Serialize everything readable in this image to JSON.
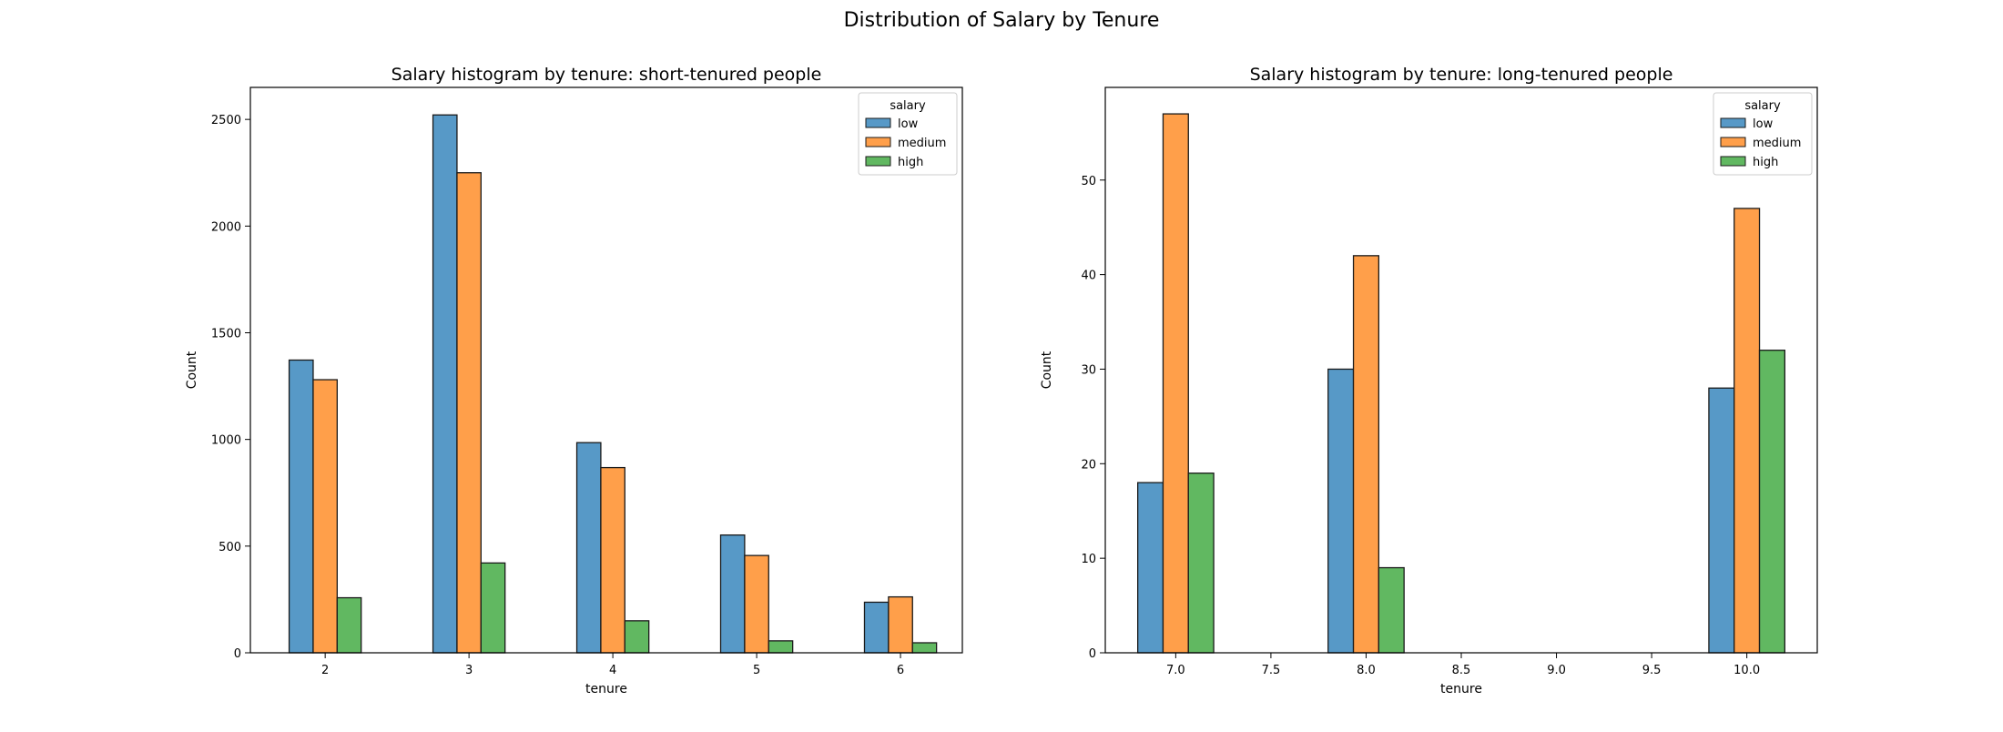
{
  "figure": {
    "suptitle": "Distribution of Salary by Tenure"
  },
  "colors": {
    "low": "#5799c7",
    "medium": "#ff9f4a",
    "high": "#61b861",
    "edge": "#1a1a1a"
  },
  "chart_data": [
    {
      "type": "bar",
      "title": "Salary histogram by tenure: short-tenured people",
      "xlabel": "tenure",
      "ylabel": "Count",
      "categories": [
        2,
        3,
        4,
        5,
        6
      ],
      "xlim": [
        1.48,
        6.43
      ],
      "ylim": [
        0,
        2650
      ],
      "xticks": [
        "2",
        "3",
        "4",
        "5",
        "6"
      ],
      "xtick_values": [
        2,
        3,
        4,
        5,
        6
      ],
      "yticks": [
        0,
        500,
        1000,
        1500,
        2000,
        2500
      ],
      "bar_width": 0.167,
      "legend": {
        "title": "salary",
        "placement": "top-right"
      },
      "series": [
        {
          "name": "low",
          "values": [
            1372,
            2521,
            985,
            552,
            237
          ]
        },
        {
          "name": "medium",
          "values": [
            1280,
            2250,
            868,
            456,
            262
          ]
        },
        {
          "name": "high",
          "values": [
            258,
            421,
            150,
            56,
            47
          ]
        }
      ]
    },
    {
      "type": "bar",
      "title": "Salary histogram by tenure: long-tenured people",
      "xlabel": "tenure",
      "ylabel": "Count",
      "categories": [
        7,
        8,
        9,
        10
      ],
      "xlim": [
        6.63,
        10.37
      ],
      "ylim": [
        0,
        59.8
      ],
      "xticks": [
        "7.0",
        "7.5",
        "8.0",
        "8.5",
        "9.0",
        "9.5",
        "10.0"
      ],
      "xtick_values": [
        7.0,
        7.5,
        8.0,
        8.5,
        9.0,
        9.5,
        10.0
      ],
      "yticks": [
        0,
        10,
        20,
        30,
        40,
        50
      ],
      "bar_width": 0.133,
      "legend": {
        "title": "salary",
        "placement": "top-right"
      },
      "series": [
        {
          "name": "low",
          "values": [
            18,
            30,
            0,
            28
          ]
        },
        {
          "name": "medium",
          "values": [
            57,
            42,
            0,
            47
          ]
        },
        {
          "name": "high",
          "values": [
            19,
            9,
            0,
            32
          ]
        }
      ]
    }
  ]
}
